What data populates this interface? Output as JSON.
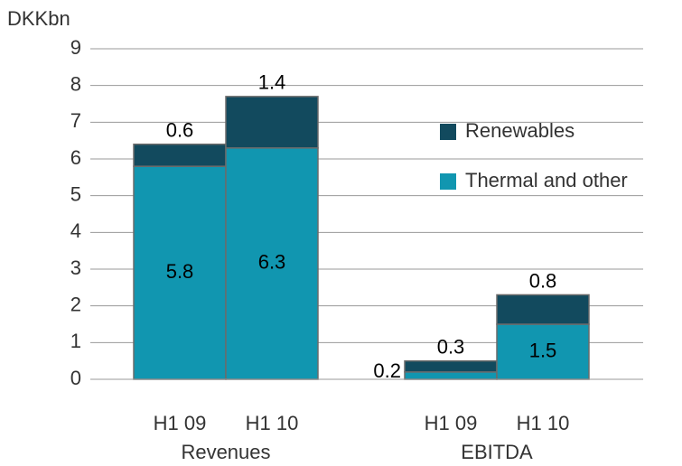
{
  "chart_data": {
    "type": "stacked-bar",
    "y_label": "DKKbn",
    "groups": [
      "Revenues",
      "EBITDA"
    ],
    "categories": [
      "H1 09",
      "H1 10",
      "H1 09",
      "H1 10"
    ],
    "series": [
      {
        "name": "Thermal and other",
        "color": "#1196b0",
        "values": [
          5.8,
          6.3,
          0.2,
          1.5
        ]
      },
      {
        "name": "Renewables",
        "color": "#124a5e",
        "values": [
          0.6,
          1.4,
          0.3,
          0.8
        ]
      }
    ],
    "ylim": [
      0,
      9
    ],
    "yticks": [
      0,
      1,
      2,
      3,
      4,
      5,
      6,
      7,
      8,
      9
    ],
    "grid": true,
    "legend": "right"
  }
}
